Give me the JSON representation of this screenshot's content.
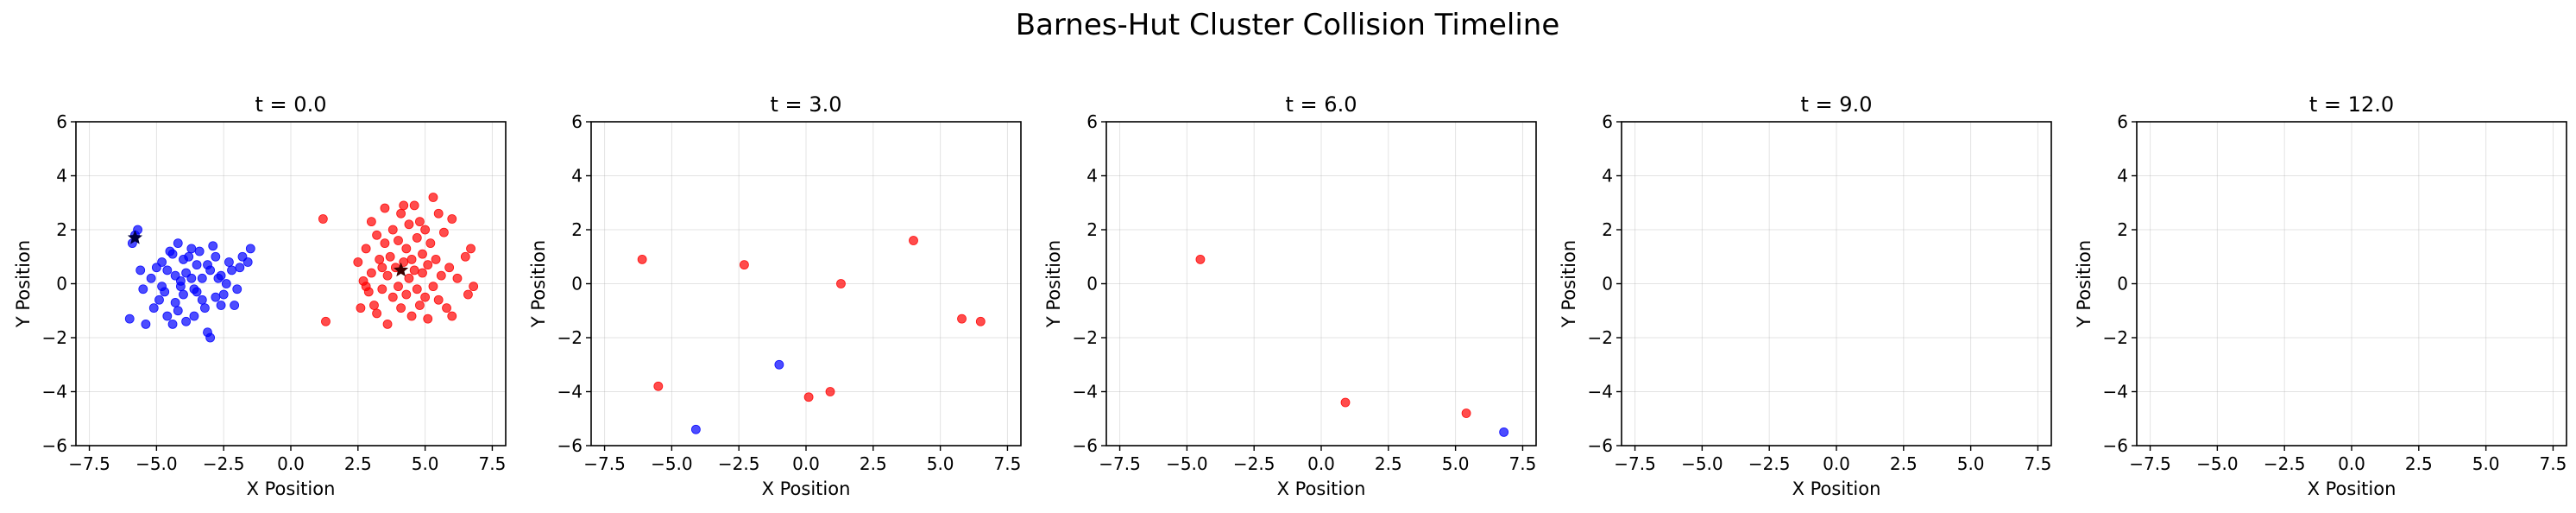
{
  "figure": {
    "title": "Barnes-Hut Cluster Collision Timeline"
  },
  "colors": {
    "cluster_a": "#0000ff",
    "cluster_b": "#ff0000",
    "center_marker": "#00003c",
    "background": "#ffffff"
  },
  "chart_data": [
    {
      "type": "scatter",
      "title": "t = 0.0",
      "xlabel": "X Position",
      "ylabel": "Y Position",
      "xlim": [
        -8,
        8
      ],
      "ylim": [
        -6,
        6
      ],
      "xticks": [
        -7.5,
        -5.0,
        -2.5,
        0.0,
        2.5,
        5.0,
        7.5
      ],
      "xtick_labels": [
        "−7.5",
        "−5.0",
        "−2.5",
        "0.0",
        "2.5",
        "5.0",
        "7.5"
      ],
      "yticks": [
        -6,
        -4,
        -2,
        0,
        2,
        4,
        6
      ],
      "ytick_labels": [
        "−6",
        "−4",
        "−2",
        "0",
        "2",
        "4",
        "6"
      ],
      "grid": true,
      "series": [
        {
          "color": "#0000ff",
          "points": [
            [
              -5.8,
              1.8
            ],
            [
              -5.7,
              2.0
            ],
            [
              -5.9,
              1.5
            ],
            [
              -5.6,
              0.5
            ],
            [
              -5.2,
              0.2
            ],
            [
              -5.5,
              -0.2
            ],
            [
              -6.0,
              -1.3
            ],
            [
              -5.4,
              -1.5
            ],
            [
              -5.1,
              -0.9
            ],
            [
              -4.9,
              -0.6
            ],
            [
              -4.8,
              0.8
            ],
            [
              -4.6,
              0.5
            ],
            [
              -4.4,
              1.1
            ],
            [
              -4.2,
              1.5
            ],
            [
              -4.5,
              1.2
            ],
            [
              -4.3,
              0.3
            ],
            [
              -4.1,
              -0.1
            ],
            [
              -4.7,
              -0.3
            ],
            [
              -4.6,
              -1.2
            ],
            [
              -4.4,
              -1.5
            ],
            [
              -4.2,
              -1.0
            ],
            [
              -4.0,
              -0.4
            ],
            [
              -3.9,
              0.4
            ],
            [
              -3.8,
              1.0
            ],
            [
              -3.7,
              0.2
            ],
            [
              -3.6,
              -0.2
            ],
            [
              -3.5,
              0.7
            ],
            [
              -3.4,
              1.2
            ],
            [
              -3.3,
              -0.6
            ],
            [
              -3.2,
              -0.9
            ],
            [
              -3.1,
              -1.8
            ],
            [
              -3.0,
              -2.0
            ],
            [
              -3.0,
              0.5
            ],
            [
              -2.9,
              1.4
            ],
            [
              -2.8,
              1.0
            ],
            [
              -2.7,
              0.2
            ],
            [
              -2.6,
              -0.8
            ],
            [
              -2.5,
              -0.4
            ],
            [
              -2.4,
              0.0
            ],
            [
              -2.3,
              0.8
            ],
            [
              -2.2,
              0.5
            ],
            [
              -2.0,
              -0.2
            ],
            [
              -1.9,
              0.6
            ],
            [
              -1.8,
              1.0
            ],
            [
              -1.6,
              0.8
            ],
            [
              -1.5,
              1.3
            ],
            [
              -2.1,
              -0.8
            ],
            [
              -3.6,
              -1.2
            ],
            [
              -3.9,
              -1.4
            ],
            [
              -4.0,
              0.9
            ],
            [
              -3.3,
              0.2
            ],
            [
              -3.5,
              -0.3
            ],
            [
              -4.8,
              -0.1
            ],
            [
              -5.0,
              0.6
            ],
            [
              -3.7,
              1.3
            ],
            [
              -4.3,
              -0.7
            ],
            [
              -2.8,
              -0.5
            ],
            [
              -3.1,
              0.7
            ],
            [
              -4.1,
              0.1
            ],
            [
              -2.6,
              0.3
            ]
          ]
        },
        {
          "color": "#ff0000",
          "points": [
            [
              1.2,
              2.4
            ],
            [
              1.3,
              -1.4
            ],
            [
              2.5,
              0.8
            ],
            [
              2.6,
              -0.9
            ],
            [
              2.7,
              0.1
            ],
            [
              2.8,
              1.3
            ],
            [
              2.9,
              -0.3
            ],
            [
              3.0,
              2.3
            ],
            [
              3.0,
              0.4
            ],
            [
              3.1,
              -0.8
            ],
            [
              3.2,
              1.8
            ],
            [
              3.2,
              -1.1
            ],
            [
              3.3,
              0.9
            ],
            [
              3.4,
              -0.2
            ],
            [
              3.5,
              1.5
            ],
            [
              3.5,
              2.8
            ],
            [
              3.6,
              0.3
            ],
            [
              3.6,
              -1.5
            ],
            [
              3.7,
              1.0
            ],
            [
              3.8,
              2.0
            ],
            [
              3.8,
              -0.5
            ],
            [
              3.9,
              0.6
            ],
            [
              4.0,
              1.6
            ],
            [
              4.0,
              -0.1
            ],
            [
              4.1,
              2.6
            ],
            [
              4.1,
              -0.9
            ],
            [
              4.2,
              0.8
            ],
            [
              4.3,
              1.3
            ],
            [
              4.3,
              -0.4
            ],
            [
              4.4,
              2.2
            ],
            [
              4.4,
              0.2
            ],
            [
              4.5,
              -1.2
            ],
            [
              4.5,
              0.9
            ],
            [
              4.6,
              2.9
            ],
            [
              4.6,
              0.5
            ],
            [
              4.7,
              -0.2
            ],
            [
              4.7,
              1.7
            ],
            [
              4.8,
              2.3
            ],
            [
              4.8,
              -0.8
            ],
            [
              4.9,
              0.4
            ],
            [
              4.9,
              1.1
            ],
            [
              5.0,
              -0.5
            ],
            [
              5.0,
              2.0
            ],
            [
              5.1,
              0.7
            ],
            [
              5.1,
              -1.3
            ],
            [
              5.2,
              1.5
            ],
            [
              5.3,
              3.2
            ],
            [
              5.3,
              -0.1
            ],
            [
              5.4,
              0.9
            ],
            [
              5.5,
              2.6
            ],
            [
              5.5,
              -0.6
            ],
            [
              5.6,
              0.3
            ],
            [
              5.7,
              1.9
            ],
            [
              5.8,
              -0.9
            ],
            [
              5.9,
              0.6
            ],
            [
              6.0,
              2.4
            ],
            [
              6.0,
              -1.2
            ],
            [
              6.2,
              0.2
            ],
            [
              6.5,
              1.0
            ],
            [
              6.7,
              1.3
            ],
            [
              6.8,
              -0.1
            ],
            [
              6.6,
              -0.4
            ],
            [
              3.4,
              0.6
            ],
            [
              4.2,
              2.9
            ],
            [
              2.8,
              -0.1
            ]
          ]
        }
      ],
      "markers": [
        {
          "label": "center_of_mass",
          "color": "#00003c",
          "shape": "star",
          "point": [
            -5.8,
            1.7
          ]
        },
        {
          "label": "center_of_mass",
          "color": "#3c0000",
          "shape": "star",
          "point": [
            4.1,
            0.5
          ]
        }
      ]
    },
    {
      "type": "scatter",
      "title": "t = 3.0",
      "xlabel": "X Position",
      "ylabel": "Y Position",
      "xlim": [
        -8,
        8
      ],
      "ylim": [
        -6,
        6
      ],
      "xticks": [
        -7.5,
        -5.0,
        -2.5,
        0.0,
        2.5,
        5.0,
        7.5
      ],
      "xtick_labels": [
        "−7.5",
        "−5.0",
        "−2.5",
        "0.0",
        "2.5",
        "5.0",
        "7.5"
      ],
      "yticks": [
        -6,
        -4,
        -2,
        0,
        2,
        4,
        6
      ],
      "ytick_labels": [
        "−6",
        "−4",
        "−2",
        "0",
        "2",
        "4",
        "6"
      ],
      "grid": true,
      "series": [
        {
          "color": "#0000ff",
          "points": [
            [
              -4.1,
              -5.4
            ],
            [
              -1.0,
              -3.0
            ]
          ]
        },
        {
          "color": "#ff0000",
          "points": [
            [
              -6.1,
              0.9
            ],
            [
              -5.5,
              -3.8
            ],
            [
              -2.3,
              0.7
            ],
            [
              0.1,
              -4.2
            ],
            [
              0.9,
              -4.0
            ],
            [
              1.3,
              0.0
            ],
            [
              4.0,
              1.6
            ],
            [
              5.8,
              -1.3
            ],
            [
              6.5,
              -1.4
            ]
          ]
        }
      ],
      "markers": []
    },
    {
      "type": "scatter",
      "title": "t = 6.0",
      "xlabel": "X Position",
      "ylabel": "Y Position",
      "xlim": [
        -8,
        8
      ],
      "ylim": [
        -6,
        6
      ],
      "xticks": [
        -7.5,
        -5.0,
        -2.5,
        0.0,
        2.5,
        5.0,
        7.5
      ],
      "xtick_labels": [
        "−7.5",
        "−5.0",
        "−2.5",
        "0.0",
        "2.5",
        "5.0",
        "7.5"
      ],
      "yticks": [
        -6,
        -4,
        -2,
        0,
        2,
        4,
        6
      ],
      "ytick_labels": [
        "−6",
        "−4",
        "−2",
        "0",
        "2",
        "4",
        "6"
      ],
      "grid": true,
      "series": [
        {
          "color": "#0000ff",
          "points": [
            [
              6.8,
              -5.5
            ]
          ]
        },
        {
          "color": "#ff0000",
          "points": [
            [
              -4.5,
              0.9
            ],
            [
              0.9,
              -4.4
            ],
            [
              5.4,
              -4.8
            ]
          ]
        }
      ],
      "markers": []
    },
    {
      "type": "scatter",
      "title": "t = 9.0",
      "xlabel": "X Position",
      "ylabel": "Y Position",
      "xlim": [
        -8,
        8
      ],
      "ylim": [
        -6,
        6
      ],
      "xticks": [
        -7.5,
        -5.0,
        -2.5,
        0.0,
        2.5,
        5.0,
        7.5
      ],
      "xtick_labels": [
        "−7.5",
        "−5.0",
        "−2.5",
        "0.0",
        "2.5",
        "5.0",
        "7.5"
      ],
      "yticks": [
        -6,
        -4,
        -2,
        0,
        2,
        4,
        6
      ],
      "ytick_labels": [
        "−6",
        "−4",
        "−2",
        "0",
        "2",
        "4",
        "6"
      ],
      "grid": true,
      "series": [],
      "markers": []
    },
    {
      "type": "scatter",
      "title": "t = 12.0",
      "xlabel": "X Position",
      "ylabel": "Y Position",
      "xlim": [
        -8,
        8
      ],
      "ylim": [
        -6,
        6
      ],
      "xticks": [
        -7.5,
        -5.0,
        -2.5,
        0.0,
        2.5,
        5.0,
        7.5
      ],
      "xtick_labels": [
        "−7.5",
        "−5.0",
        "−2.5",
        "0.0",
        "2.5",
        "5.0",
        "7.5"
      ],
      "yticks": [
        -6,
        -4,
        -2,
        0,
        2,
        4,
        6
      ],
      "ytick_labels": [
        "−6",
        "−4",
        "−2",
        "0",
        "2",
        "4",
        "6"
      ],
      "grid": true,
      "series": [],
      "markers": []
    }
  ]
}
